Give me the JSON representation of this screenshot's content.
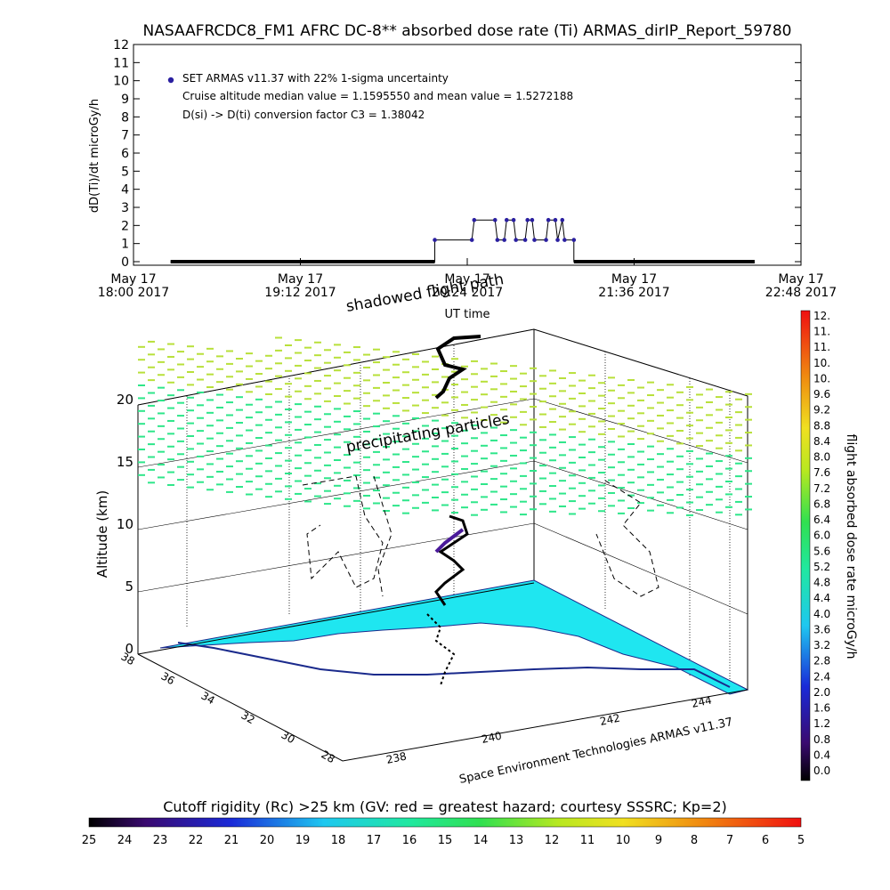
{
  "title": "NASAAFRCDC8_FM1 AFRC DC-8** absorbed dose rate (Ti) ARMAS_dirIP_Report_59780",
  "timeseries": {
    "ylabel": "dD(Ti)/dt microGy/h",
    "xlabel": "UT time",
    "y_ticks": [
      "0",
      "1",
      "2",
      "3",
      "4",
      "5",
      "6",
      "7",
      "8",
      "9",
      "10",
      "11",
      "12"
    ],
    "x_ticks": [
      {
        "top": "May 17",
        "bottom": "18:00 2017"
      },
      {
        "top": "May 17",
        "bottom": "19:12 2017"
      },
      {
        "top": "May 17",
        "bottom": "20:24 2017"
      },
      {
        "top": "May 17",
        "bottom": "21:36 2017"
      },
      {
        "top": "May 17",
        "bottom": "22:48 2017"
      }
    ],
    "legend": [
      "SET ARMAS v11.37 with 22% 1-sigma uncertainty",
      "Cruise altitude median value = 1.1595550 and mean value = 1.5272188",
      "D(si) -> D(ti) conversion factor C3 = 1.38042"
    ]
  },
  "chart_data": {
    "type": "line",
    "title": "NASAAFRCDC8_FM1 AFRC DC-8** absorbed dose rate (Ti) ARMAS_dirIP_Report_59780",
    "xlabel": "UT time",
    "ylabel": "dD(Ti)/dt microGy/h",
    "ylim": [
      0,
      12
    ],
    "x_range": [
      "18:00",
      "22:48"
    ],
    "series": [
      {
        "name": "SET ARMAS v11.37 with 22% 1-sigma uncertainty",
        "x": [
          "18:16",
          "20:10",
          "20:10",
          "20:26",
          "20:27",
          "20:36",
          "20:37",
          "20:40",
          "20:41",
          "20:44",
          "20:45",
          "20:49",
          "20:50",
          "20:52",
          "20:53",
          "20:58",
          "20:59",
          "21:02",
          "21:03",
          "21:05",
          "21:06",
          "21:10",
          "21:10",
          "22:28"
        ],
        "y": [
          0,
          0,
          1.2,
          1.2,
          2.3,
          2.3,
          1.2,
          1.2,
          2.3,
          2.3,
          1.2,
          1.2,
          2.3,
          2.3,
          1.2,
          1.2,
          2.3,
          2.3,
          1.2,
          2.3,
          1.2,
          1.2,
          0,
          0
        ]
      }
    ]
  },
  "plot3d": {
    "annotations": [
      "shadowed flight path",
      "precipitating particles"
    ],
    "altitude_label": "Altitude (km)",
    "altitude_ticks": [
      "0",
      "5",
      "10",
      "15",
      "20"
    ],
    "lat_ticks": [
      "38",
      "36",
      "34",
      "32",
      "30",
      "28"
    ],
    "lon_ticks": [
      "238",
      "240",
      "242",
      "244"
    ],
    "credit": "Space Environment Technologies ARMAS v11.37"
  },
  "colorbar_right": {
    "label": "flight absorbed dose rate microGy/h",
    "ticks": [
      "12.",
      "11.",
      "11.",
      "10.",
      "10.",
      "9.6",
      "9.2",
      "8.8",
      "8.4",
      "8.0",
      "7.6",
      "7.2",
      "6.8",
      "6.4",
      "6.0",
      "5.6",
      "5.2",
      "4.8",
      "4.4",
      "4.0",
      "3.6",
      "3.2",
      "2.8",
      "2.4",
      "2.0",
      "1.6",
      "1.2",
      "0.8",
      "0.4",
      "0.0"
    ]
  },
  "colorbar_bottom": {
    "title": "Cutoff rigidity (Rc) >25 km (GV: red = greatest hazard; courtesy SSSRC; Kp=2)",
    "ticks": [
      "25",
      "24",
      "23",
      "22",
      "21",
      "20",
      "19",
      "18",
      "17",
      "16",
      "15",
      "14",
      "13",
      "12",
      "11",
      "10",
      "9",
      "8",
      "7",
      "6",
      "5"
    ]
  },
  "colors": {
    "series": "#2a1fa0",
    "surface": "#1fe6f0",
    "coast": "#1a2a8c",
    "precip_high": "#b8e03a",
    "precip_low": "#2ee68a"
  }
}
